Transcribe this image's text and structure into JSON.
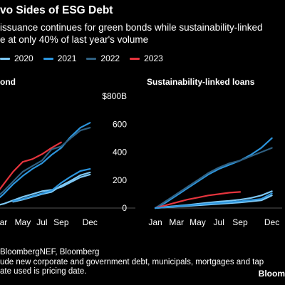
{
  "header": {
    "title": "vo Sides of ESG Debt",
    "subtitle_lines": [
      "issuance continues for green bonds while sustainability-linked",
      "e at only 40% of last year's volume"
    ]
  },
  "legend": [
    {
      "label": "2020",
      "color": "#7ec8f4"
    },
    {
      "label": "2021",
      "color": "#2c95dd"
    },
    {
      "label": "2022",
      "color": "#2f5f80"
    },
    {
      "label": "2023",
      "color": "#e5343d"
    }
  ],
  "footer": {
    "lines": [
      "BloombergNEF, Bloomberg",
      "ude new corporate and government debt, municipals, mortgages and tap",
      "ate used is pricing date."
    ],
    "brand": "Bloom"
  },
  "chart_data": [
    {
      "type": "line",
      "title": "ond",
      "ylabel": "",
      "x_tick_labels": [
        "ar",
        "May",
        "Jul",
        "Sep",
        "Dec"
      ],
      "x_tick_months": [
        3,
        5,
        7,
        9,
        12
      ],
      "xlim": [
        1,
        12.5
      ],
      "y_tick_labels": [
        "$800B",
        "600",
        "400",
        "200",
        "0"
      ],
      "y_ticks": [
        800,
        600,
        400,
        200,
        0
      ],
      "ylim": [
        0,
        800
      ],
      "series": [
        {
          "name": "2020",
          "x": [
            1,
            2,
            3,
            4,
            5,
            6,
            7,
            8,
            9,
            10,
            11,
            12
          ],
          "y": [
            0,
            15,
            30,
            55,
            80,
            100,
            120,
            130,
            150,
            185,
            220,
            240
          ]
        },
        {
          "name": "2021",
          "x": [
            1,
            2,
            3,
            4,
            5,
            6,
            7,
            8,
            9,
            10,
            11,
            12
          ],
          "y": [
            0,
            40,
            100,
            170,
            230,
            280,
            320,
            380,
            430,
            510,
            575,
            610
          ]
        },
        {
          "name": "2022",
          "x": [
            1,
            2,
            3,
            4,
            5,
            6,
            7,
            8,
            9,
            10,
            11,
            12
          ],
          "y": [
            0,
            60,
            120,
            190,
            260,
            300,
            340,
            420,
            440,
            500,
            555,
            575
          ]
        },
        {
          "name": "2023",
          "x": [
            1,
            2,
            3,
            4,
            5,
            6,
            7,
            8,
            9
          ],
          "y": [
            0,
            80,
            170,
            260,
            330,
            350,
            385,
            430,
            470
          ]
        },
        {
          "name": "2020",
          "x": [
            4,
            5,
            6,
            7,
            8,
            9,
            10,
            11,
            12
          ],
          "y": [
            45,
            60,
            80,
            100,
            115,
            160,
            195,
            235,
            255
          ]
        },
        {
          "name": "2021",
          "x": [
            4,
            5,
            6,
            7,
            8,
            9,
            10,
            11,
            12
          ],
          "y": [
            50,
            65,
            85,
            105,
            125,
            180,
            225,
            265,
            280
          ]
        }
      ]
    },
    {
      "type": "line",
      "title": "Sustainability-linked loans",
      "x_tick_labels": [
        "Jan",
        "Mar",
        "May",
        "Jul",
        "Sep",
        "Dec"
      ],
      "x_tick_months": [
        1,
        3,
        5,
        7,
        9,
        12
      ],
      "xlim": [
        1,
        12.5
      ],
      "ylim": [
        0,
        800
      ],
      "series": [
        {
          "name": "2020",
          "x": [
            1,
            2,
            3,
            4,
            5,
            6,
            7,
            8,
            9,
            10,
            11,
            12
          ],
          "y": [
            0,
            8,
            15,
            22,
            30,
            38,
            46,
            52,
            60,
            72,
            90,
            120
          ]
        },
        {
          "name": "2021",
          "x": [
            1,
            2,
            3,
            4,
            5,
            6,
            7,
            8,
            9,
            10,
            11,
            12
          ],
          "y": [
            0,
            40,
            90,
            140,
            190,
            240,
            280,
            310,
            340,
            380,
            430,
            500
          ]
        },
        {
          "name": "2022",
          "x": [
            1,
            2,
            3,
            4,
            5,
            6,
            7,
            8,
            9,
            10,
            11,
            12
          ],
          "y": [
            0,
            50,
            100,
            150,
            200,
            250,
            290,
            320,
            340,
            370,
            400,
            430
          ]
        },
        {
          "name": "2023",
          "x": [
            1,
            2,
            3,
            4,
            5,
            6,
            7,
            8,
            9
          ],
          "y": [
            0,
            20,
            40,
            60,
            75,
            90,
            100,
            110,
            115
          ]
        },
        {
          "name": "2020",
          "x": [
            1,
            3,
            5,
            7,
            9,
            11,
            12
          ],
          "y": [
            0,
            10,
            20,
            30,
            40,
            55,
            90
          ]
        },
        {
          "name": "2021",
          "x": [
            1,
            3,
            5,
            7,
            9,
            11,
            12
          ],
          "y": [
            0,
            12,
            25,
            36,
            48,
            65,
            105
          ]
        }
      ]
    }
  ]
}
